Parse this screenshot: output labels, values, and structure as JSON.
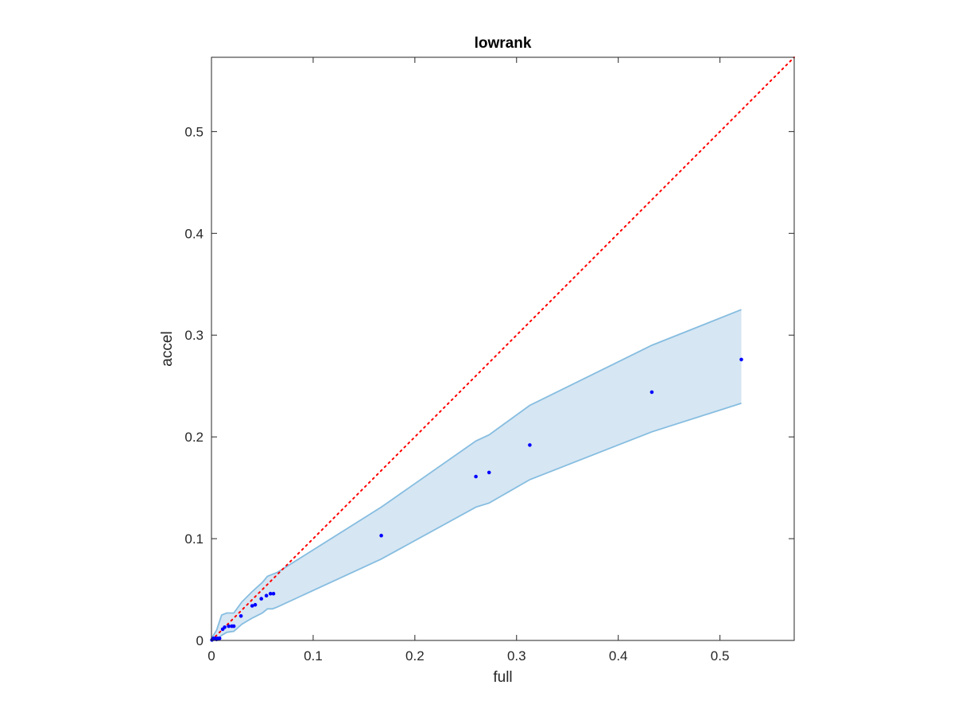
{
  "chart_data": {
    "type": "scatter",
    "title": "lowrank",
    "xlabel": "full",
    "ylabel": "accel",
    "xlim": [
      0,
      0.573
    ],
    "ylim": [
      0,
      0.573
    ],
    "xticks": [
      0,
      0.1,
      0.2,
      0.3,
      0.4,
      0.5
    ],
    "xtick_labels": [
      "0",
      "0.1",
      "0.2",
      "0.3",
      "0.4",
      "0.5"
    ],
    "yticks": [
      0,
      0.1,
      0.2,
      0.3,
      0.4,
      0.5
    ],
    "ytick_labels": [
      "0",
      "0.1",
      "0.2",
      "0.3",
      "0.4",
      "0.5"
    ],
    "grid": false,
    "points": {
      "x": [
        0.0005,
        0.001,
        0.0015,
        0.002,
        0.003,
        0.004,
        0.005,
        0.006,
        0.007,
        0.008,
        0.011,
        0.013,
        0.017,
        0.02,
        0.022,
        0.029,
        0.04,
        0.043,
        0.049,
        0.054,
        0.058,
        0.061,
        0.167,
        0.26,
        0.273,
        0.313,
        0.433,
        0.521
      ],
      "y": [
        0.0005,
        0.001,
        0.0015,
        0.002,
        0.0015,
        0.002,
        0.001,
        0.002,
        0.0015,
        0.002,
        0.011,
        0.013,
        0.014,
        0.014,
        0.014,
        0.024,
        0.034,
        0.035,
        0.041,
        0.044,
        0.046,
        0.046,
        0.103,
        0.161,
        0.165,
        0.192,
        0.244,
        0.276
      ],
      "color": "#0000ff"
    },
    "band": {
      "x": [
        0.0,
        0.005,
        0.01,
        0.015,
        0.022,
        0.03,
        0.04,
        0.05,
        0.055,
        0.06,
        0.065,
        0.167,
        0.26,
        0.273,
        0.313,
        0.433,
        0.521
      ],
      "upper": [
        0.002,
        0.01,
        0.025,
        0.027,
        0.027,
        0.038,
        0.048,
        0.057,
        0.063,
        0.065,
        0.067,
        0.131,
        0.196,
        0.202,
        0.231,
        0.29,
        0.325
      ],
      "lower": [
        0.0,
        0.001,
        0.005,
        0.008,
        0.009,
        0.016,
        0.022,
        0.027,
        0.031,
        0.031,
        0.033,
        0.08,
        0.131,
        0.135,
        0.158,
        0.205,
        0.233
      ],
      "fill_color": "#d6e6f3",
      "edge_color": "#86bde0"
    },
    "reference_line": {
      "x": [
        0,
        0.573
      ],
      "y": [
        0,
        0.573
      ],
      "style": "dotted",
      "color": "#ff0000"
    }
  }
}
